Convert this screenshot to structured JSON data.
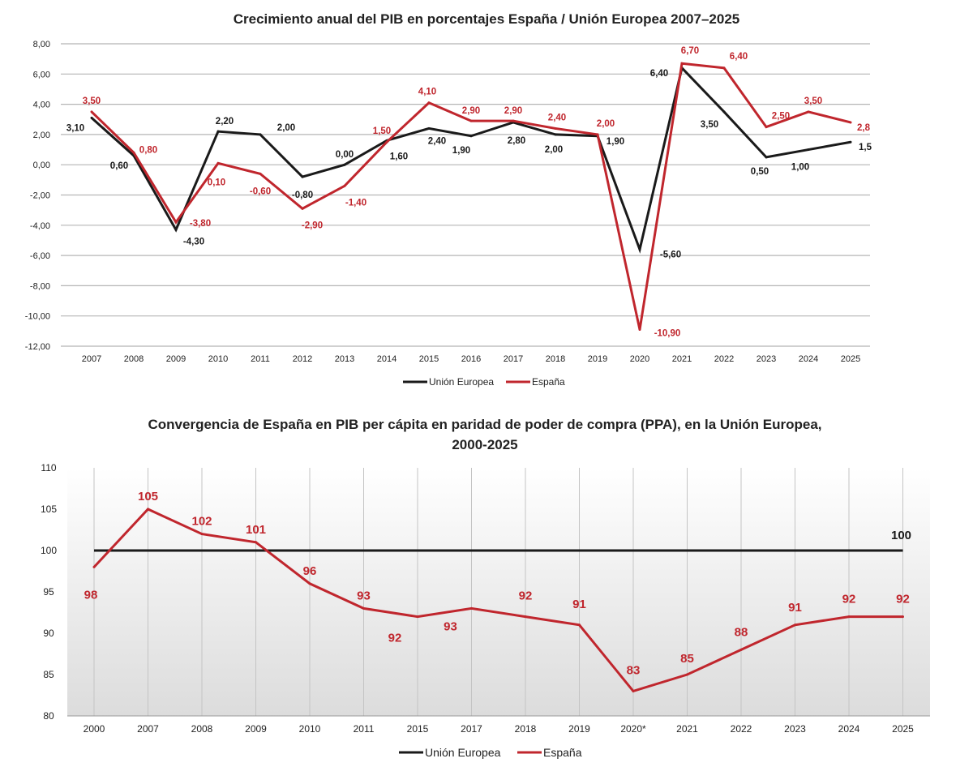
{
  "chart_data": [
    {
      "type": "line",
      "title": "Crecimiento anual del PIB en porcentajes España / Unión Europea 2007–2025",
      "categories": [
        "2007",
        "2008",
        "2009",
        "2010",
        "2011",
        "2012",
        "2013",
        "2014",
        "2015",
        "2016",
        "2017",
        "2018",
        "2019",
        "2020",
        "2021",
        "2022",
        "2023",
        "2024",
        "2025"
      ],
      "series": [
        {
          "name": "Unión Europea",
          "color": "#1a1a1a",
          "values": [
            3.1,
            0.6,
            -4.3,
            2.2,
            2.0,
            -0.8,
            0.0,
            1.6,
            2.4,
            1.9,
            2.8,
            2.0,
            1.9,
            -5.6,
            6.4,
            3.5,
            0.5,
            1.0,
            1.5
          ],
          "labels": [
            "3,10",
            "0,60",
            "-4,30",
            "2,20",
            "2,00",
            "-0,80",
            "0,00",
            "1,60",
            "2,40",
            "1,90",
            "2,80",
            "2,00",
            "1,90",
            "-5,60",
            "6,40",
            "3,50",
            "0,50",
            "1,00",
            "1,5"
          ]
        },
        {
          "name": "España",
          "color": "#c0262d",
          "values": [
            3.5,
            0.8,
            -3.8,
            0.1,
            -0.6,
            -2.9,
            -1.4,
            1.5,
            4.1,
            2.9,
            2.9,
            2.4,
            2.0,
            -10.9,
            6.7,
            6.4,
            2.5,
            3.5,
            2.8
          ],
          "labels": [
            "3,50",
            "0,80",
            "-3,80",
            "0,10",
            "-0,60",
            "-2,90",
            "-1,40",
            "1,50",
            "4,10",
            "2,90",
            "2,90",
            "2,40",
            "2,00",
            "-10,90",
            "6,70",
            "6,40",
            "2,50",
            "3,50",
            "2,8"
          ]
        }
      ],
      "yticks": [
        "8,00",
        "6,00",
        "4,00",
        "2,00",
        "0,00",
        "-2,00",
        "-4,00",
        "-6,00",
        "-8,00",
        "-10,00",
        "-12,00"
      ],
      "ylim": [
        -12,
        8
      ],
      "grid": "horizontal",
      "legend": "bottom"
    },
    {
      "type": "line",
      "title": "Convergencia de España en  PIB per cápita en paridad de poder de compra (PPA), en la Unión Europea,",
      "title2": "2000-2025",
      "categories": [
        "2000",
        "2007",
        "2008",
        "2009",
        "2010",
        "2011",
        "2015",
        "2017",
        "2018",
        "2019",
        "2020*",
        "2021",
        "2022",
        "2023",
        "2024",
        "2025"
      ],
      "series": [
        {
          "name": "Unión Europea",
          "color": "#1a1a1a",
          "values": [
            100,
            100,
            100,
            100,
            100,
            100,
            100,
            100,
            100,
            100,
            100,
            100,
            100,
            100,
            100,
            100
          ],
          "end_label": "100"
        },
        {
          "name": "España",
          "color": "#c0262d",
          "values": [
            98,
            105,
            102,
            101,
            96,
            93,
            92,
            93,
            92,
            91,
            83,
            85,
            88,
            91,
            92,
            92
          ]
        }
      ],
      "yticks": [
        "110",
        "105",
        "100",
        "95",
        "90",
        "85",
        "80"
      ],
      "ylim": [
        80,
        110
      ],
      "grid": "vertical",
      "legend": "bottom"
    }
  ]
}
